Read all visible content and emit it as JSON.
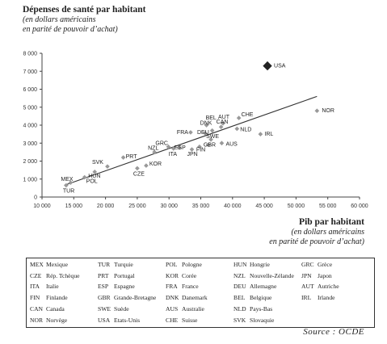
{
  "chart_data": {
    "type": "scatter",
    "title": "Dépenses de santé par habitant",
    "subtitle": [
      "(en dollars américains",
      "en parité de pouvoir d’achat)"
    ],
    "xlabel": "Pib par habitant",
    "xlabel_sub": [
      "(en dollars américains",
      "en parité de pouvoir d’achat)"
    ],
    "xlim": [
      10000,
      60000
    ],
    "ylim": [
      0,
      8000
    ],
    "xticks": [
      10000,
      15000,
      20000,
      25000,
      30000,
      35000,
      40000,
      45000,
      50000,
      55000,
      60000
    ],
    "xtick_labels": [
      "10 000",
      "15 000",
      "20 000",
      "25 000",
      "30 000",
      "35 000",
      "40 000",
      "45 000",
      "50 000",
      "55 000",
      "60 000"
    ],
    "yticks": [
      0,
      1000,
      2000,
      3000,
      4000,
      5000,
      6000,
      7000,
      8000
    ],
    "ytick_labels": [
      "0",
      "1 000",
      "2 000",
      "3 000",
      "4 000",
      "5 000",
      "6 000",
      "7 000",
      "8 000"
    ],
    "grid": false,
    "points": [
      {
        "code": "USA",
        "x": 45500,
        "y": 7300,
        "highlight": true
      },
      {
        "code": "NOR",
        "x": 53300,
        "y": 4800
      },
      {
        "code": "IRL",
        "x": 44400,
        "y": 3500
      },
      {
        "code": "CHE",
        "x": 41000,
        "y": 4400
      },
      {
        "code": "BEL",
        "x": 35900,
        "y": 4000
      },
      {
        "code": "AUT",
        "x": 38500,
        "y": 4100
      },
      {
        "code": "CAN",
        "x": 38200,
        "y": 3900
      },
      {
        "code": "NLD",
        "x": 40700,
        "y": 3800
      },
      {
        "code": "DNK",
        "x": 36800,
        "y": 3700
      },
      {
        "code": "FRA",
        "x": 33400,
        "y": 3600
      },
      {
        "code": "DEU",
        "x": 35700,
        "y": 3550
      },
      {
        "code": "SWE",
        "x": 36600,
        "y": 3200
      },
      {
        "code": "GBR",
        "x": 36200,
        "y": 2900
      },
      {
        "code": "AUS",
        "x": 38300,
        "y": 3000
      },
      {
        "code": "FIN",
        "x": 34800,
        "y": 2800
      },
      {
        "code": "JPN",
        "x": 33600,
        "y": 2650
      },
      {
        "code": "ESP",
        "x": 31600,
        "y": 2750
      },
      {
        "code": "ITA",
        "x": 30700,
        "y": 2700
      },
      {
        "code": "NZL",
        "x": 27700,
        "y": 2500
      },
      {
        "code": "GRC",
        "x": 29900,
        "y": 2800
      },
      {
        "code": "PRT",
        "x": 22800,
        "y": 2200
      },
      {
        "code": "SVK",
        "x": 20300,
        "y": 1700
      },
      {
        "code": "KOR",
        "x": 26400,
        "y": 1750
      },
      {
        "code": "CZE",
        "x": 25000,
        "y": 1600
      },
      {
        "code": "HUN",
        "x": 18300,
        "y": 1400
      },
      {
        "code": "POL",
        "x": 16700,
        "y": 1100
      },
      {
        "code": "MEX",
        "x": 14500,
        "y": 800
      },
      {
        "code": "TUR",
        "x": 13800,
        "y": 650
      }
    ],
    "trendline": {
      "x": [
        13500,
        53300
      ],
      "y": [
        650,
        5600
      ]
    },
    "legend": [
      {
        "code": "MEX",
        "name": "Mexique"
      },
      {
        "code": "CZE",
        "name": "Rép. Tchèque"
      },
      {
        "code": "ITA",
        "name": "Italie"
      },
      {
        "code": "FIN",
        "name": "Finlande"
      },
      {
        "code": "CAN",
        "name": "Canada"
      },
      {
        "code": "NOR",
        "name": "Norvège"
      },
      {
        "code": "TUR",
        "name": "Turquie"
      },
      {
        "code": "PRT",
        "name": "Portugal"
      },
      {
        "code": "ESP",
        "name": "Espagne"
      },
      {
        "code": "GBR",
        "name": "Grande-Bretagne"
      },
      {
        "code": "SWE",
        "name": "Suède"
      },
      {
        "code": "USA",
        "name": "Etats-Unis"
      },
      {
        "code": "POL",
        "name": "Pologne"
      },
      {
        "code": "KOR",
        "name": "Corée"
      },
      {
        "code": "FRA",
        "name": "France"
      },
      {
        "code": "DNK",
        "name": "Danemark"
      },
      {
        "code": "AUS",
        "name": "Australie"
      },
      {
        "code": "CHE",
        "name": "Suisse"
      },
      {
        "code": "HUN",
        "name": "Hongrie"
      },
      {
        "code": "NZL",
        "name": "Nouvelle-Zélande"
      },
      {
        "code": "DEU",
        "name": "Allemagne"
      },
      {
        "code": "BEL",
        "name": "Belgique"
      },
      {
        "code": "NLD",
        "name": "Pays-Bas"
      },
      {
        "code": "SVK",
        "name": "Slovaquie"
      },
      {
        "code": "GRC",
        "name": "Grèce"
      },
      {
        "code": "JPN",
        "name": "Japon"
      },
      {
        "code": "AUT",
        "name": "Autriche"
      },
      {
        "code": "IRL",
        "name": "Irlande"
      }
    ],
    "source": "Source : OCDE"
  }
}
